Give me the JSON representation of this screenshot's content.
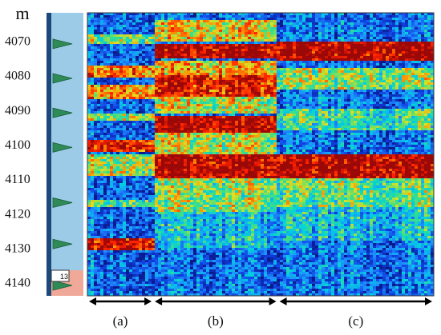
{
  "chart_data": {
    "type": "heatmap",
    "y_unit_label": "m",
    "y_ticks": [
      4070,
      4080,
      4090,
      4100,
      4110,
      4120,
      4130,
      4140
    ],
    "ylim": [
      4062,
      4144
    ],
    "track_marker_depths": [
      4071,
      4081,
      4091,
      4101,
      4117,
      4129,
      4141
    ],
    "track_box_label": "13",
    "track_color": "#9ccbe8",
    "segments": [
      {
        "label": "(a)",
        "x_fraction": [
          0.0,
          0.19
        ]
      },
      {
        "label": "(b)",
        "x_fraction": [
          0.19,
          0.55
        ]
      },
      {
        "label": "(c)",
        "x_fraction": [
          0.55,
          1.0
        ]
      }
    ],
    "bands": [
      {
        "segment": "(a)",
        "depth_range": [
          4068,
          4071
        ],
        "level": 0.55
      },
      {
        "segment": "(a)",
        "depth_range": [
          4077,
          4081
        ],
        "level": 0.8
      },
      {
        "segment": "(a)",
        "depth_range": [
          4083,
          4087
        ],
        "level": 0.75
      },
      {
        "segment": "(a)",
        "depth_range": [
          4091,
          4093
        ],
        "level": 0.6
      },
      {
        "segment": "(a)",
        "depth_range": [
          4099,
          4102
        ],
        "level": 0.9
      },
      {
        "segment": "(a)",
        "depth_range": [
          4103,
          4109
        ],
        "level": 0.6
      },
      {
        "segment": "(a)",
        "depth_range": [
          4116,
          4118
        ],
        "level": 0.5
      },
      {
        "segment": "(a)",
        "depth_range": [
          4127,
          4131
        ],
        "level": 0.95
      },
      {
        "segment": "(b)",
        "depth_range": [
          4064,
          4070
        ],
        "level": 0.65
      },
      {
        "segment": "(b)",
        "depth_range": [
          4071,
          4075
        ],
        "level": 1.0
      },
      {
        "segment": "(b)",
        "depth_range": [
          4076,
          4080
        ],
        "level": 0.7
      },
      {
        "segment": "(b)",
        "depth_range": [
          4080,
          4086
        ],
        "level": 0.9
      },
      {
        "segment": "(b)",
        "depth_range": [
          4086,
          4091
        ],
        "level": 0.6
      },
      {
        "segment": "(b)",
        "depth_range": [
          4092,
          4097
        ],
        "level": 1.0
      },
      {
        "segment": "(b)",
        "depth_range": [
          4097,
          4103
        ],
        "level": 0.6
      },
      {
        "segment": "(b)",
        "depth_range": [
          4103,
          4110
        ],
        "level": 1.0
      },
      {
        "segment": "(b)",
        "depth_range": [
          4110,
          4120
        ],
        "level": 0.55
      },
      {
        "segment": "(b)",
        "depth_range": [
          4120,
          4130
        ],
        "level": 0.35
      },
      {
        "segment": "(c)",
        "depth_range": [
          4070,
          4076
        ],
        "level": 1.0
      },
      {
        "segment": "(c)",
        "depth_range": [
          4078,
          4084
        ],
        "level": 0.55
      },
      {
        "segment": "(c)",
        "depth_range": [
          4090,
          4096
        ],
        "level": 0.45
      },
      {
        "segment": "(c)",
        "depth_range": [
          4103,
          4110
        ],
        "level": 1.0
      },
      {
        "segment": "(c)",
        "depth_range": [
          4110,
          4118
        ],
        "level": 0.5
      },
      {
        "segment": "(c)",
        "depth_range": [
          4118,
          4128
        ],
        "level": 0.35
      }
    ],
    "background_level": 0.2,
    "colormap": [
      "#0a1a8c",
      "#1040e0",
      "#1e90ff",
      "#00d0e0",
      "#40e080",
      "#e0e020",
      "#ff8000",
      "#ff2000",
      "#9a0808"
    ]
  }
}
